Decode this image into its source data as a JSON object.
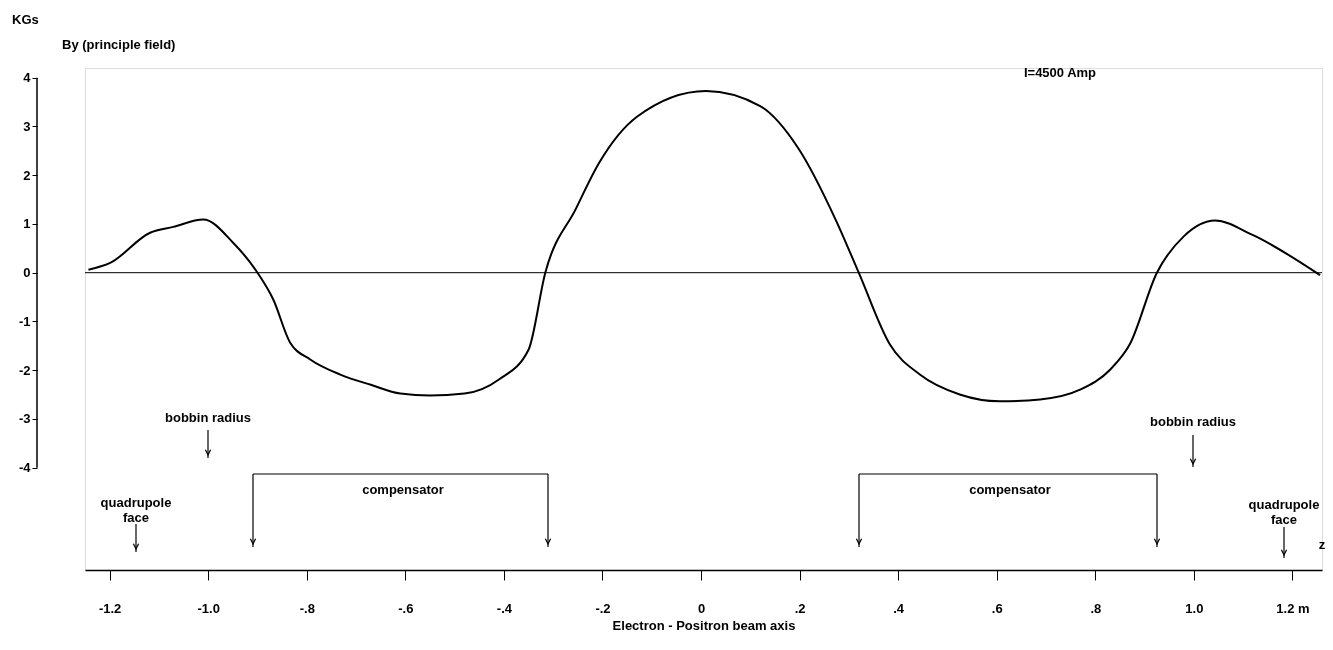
{
  "chart_data": {
    "type": "line",
    "title": "By    (principle field)",
    "ylabel": "KGs",
    "xlabel": "Electron - Positron beam axis",
    "xlim": [
      -1.25,
      1.26
    ],
    "ylim": [
      -6.1,
      4.2
    ],
    "xticks": [
      {
        "value": -1.2,
        "label": "-1.2"
      },
      {
        "value": -1.0,
        "label": "-1.0"
      },
      {
        "value": -0.8,
        "label": "-.8"
      },
      {
        "value": -0.6,
        "label": "-.6"
      },
      {
        "value": -0.4,
        "label": "-.4"
      },
      {
        "value": -0.2,
        "label": "-.2"
      },
      0,
      {
        "value": 0.2,
        "label": ".2"
      },
      {
        "value": 0.4,
        "label": ".4"
      },
      {
        "value": 0.6,
        "label": ".6"
      },
      {
        "value": 0.8,
        "label": ".8"
      },
      {
        "value": 1.0,
        "label": "1.0"
      },
      {
        "value": 1.2,
        "label": "1.2 m"
      }
    ],
    "yticks": [
      -4,
      -3,
      -2,
      -1,
      0,
      1,
      2,
      3,
      4
    ],
    "grid": false,
    "marker": "none",
    "line_style": "solid",
    "series": [
      {
        "color": "#000000",
        "x": [
          -1.243,
          -1.199,
          -1.118,
          -1.071,
          -1.01,
          -0.949,
          -0.9,
          -0.868,
          -0.834,
          -0.793,
          -0.732,
          -0.67,
          -0.61,
          -0.55,
          -0.48,
          -0.41,
          -0.35,
          -0.316,
          -0.254,
          -0.207,
          -0.13,
          0.01,
          0.12,
          0.197,
          0.274,
          0.32,
          0.383,
          0.444,
          0.525,
          0.606,
          0.688,
          0.769,
          0.83,
          0.87,
          0.925,
          0.98,
          1.043,
          1.118,
          1.256
        ],
        "values": [
          0.06,
          0.2,
          0.82,
          0.94,
          1.09,
          0.61,
          0.0,
          -0.55,
          -1.43,
          -1.78,
          -2.09,
          -2.3,
          -2.48,
          -2.52,
          -2.48,
          -2.19,
          -1.58,
          0.0,
          1.31,
          2.25,
          3.2,
          3.73,
          3.42,
          2.56,
          1.07,
          0.0,
          -1.47,
          -2.09,
          -2.5,
          -2.64,
          -2.6,
          -2.4,
          -1.99,
          -1.47,
          0.0,
          0.75,
          1.07,
          0.78,
          -0.05
        ]
      }
    ],
    "ref_lines": [
      {
        "axis": "y",
        "value": 0,
        "color": "#000000"
      }
    ],
    "annotations": [
      "I=4500 Amp",
      "bobbin radius",
      "bobbin radius",
      "quadrupole\nface",
      "quadrupole\nface",
      "compensator",
      "compensator",
      "z"
    ]
  }
}
